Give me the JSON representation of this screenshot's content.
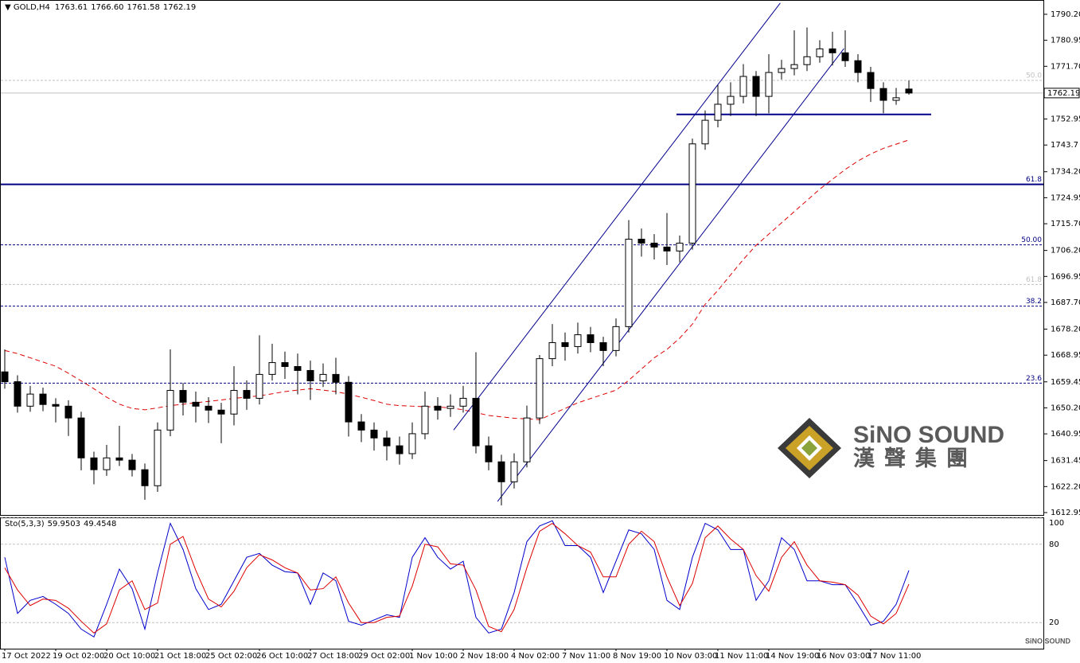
{
  "chart_data": {
    "type": "candlestick",
    "symbol": "GOLD,H4",
    "header_values": [
      "1763.61",
      "1766.60",
      "1761.58",
      "1762.19"
    ],
    "categories": [
      "17 Oct 2022",
      null,
      null,
      null,
      "19 Oct 02:00",
      null,
      null,
      null,
      "20 Oct 10:00",
      null,
      null,
      null,
      "21 Oct 18:00",
      null,
      null,
      null,
      "25 Oct 02:00",
      null,
      null,
      null,
      "26 Oct 10:00",
      null,
      null,
      null,
      "27 Oct 18:00",
      null,
      null,
      null,
      "29 Oct 02:00",
      null,
      null,
      null,
      "1 Nov 10:00",
      null,
      null,
      null,
      "2 Nov 18:00",
      null,
      null,
      null,
      "4 Nov 02:00",
      null,
      null,
      null,
      "7 Nov 11:00",
      null,
      null,
      null,
      "8 Nov 19:00",
      null,
      null,
      null,
      "10 Nov 03:00",
      null,
      null,
      null,
      "11 Nov 11:00",
      null,
      null,
      null,
      "14 Nov 19:00",
      null,
      null,
      null,
      "16 Nov 03:00",
      null,
      null,
      null,
      "17 Nov 11:00",
      null,
      null,
      null
    ],
    "open": [
      1663.0,
      1659.5,
      1650.8,
      1655.1,
      1651.4,
      1650.8,
      1646.6,
      1632.4,
      1628.2,
      1632.4,
      1631.6,
      1628.2,
      1622.5,
      1642.3,
      1656.4,
      1652.2,
      1650.8,
      1649.4,
      1648.0,
      1656.4,
      1653.6,
      1662.1,
      1666.3,
      1664.9,
      1663.5,
      1659.8,
      1662.1,
      1659.3,
      1645.2,
      1642.3,
      1639.5,
      1636.7,
      1633.9,
      1641.0,
      1650.8,
      1650.0,
      1650.8,
      1653.6,
      1636.7,
      1631.0,
      1623.9,
      1631.0,
      1646.6,
      1667.7,
      1673.4,
      1672.0,
      1676.2,
      1673.4,
      1670.6,
      1679.1,
      1710.2,
      1708.8,
      1707.4,
      1706.0,
      1708.8,
      1744.1,
      1752.5,
      1758.2,
      1761.0,
      1768.1,
      1761.0,
      1769.5,
      1770.9,
      1772.3,
      1775.1,
      1777.9,
      1776.5,
      1773.7,
      1769.5,
      1763.8,
      1759.6,
      1763.61
    ],
    "high": [
      1671.0,
      1661.8,
      1658.0,
      1657.4,
      1653.6,
      1652.9,
      1648.8,
      1634.6,
      1637.0,
      1643.8,
      1633.8,
      1630.4,
      1645.0,
      1671.0,
      1659.0,
      1656.0,
      1654.0,
      1652.0,
      1665.0,
      1660.0,
      1676.0,
      1673.0,
      1670.2,
      1669.5,
      1667.0,
      1666.0,
      1668.0,
      1661.5,
      1648.0,
      1645.0,
      1642.0,
      1640.0,
      1645.0,
      1656.0,
      1654.0,
      1655.0,
      1658.0,
      1670.0,
      1640.0,
      1633.5,
      1634.0,
      1651.0,
      1669.0,
      1680.0,
      1677.0,
      1680.5,
      1679.0,
      1675.5,
      1682.0,
      1717.0,
      1714.0,
      1712.0,
      1719.5,
      1711.5,
      1746.0,
      1756.0,
      1765.0,
      1766.0,
      1772.5,
      1770.0,
      1776.0,
      1774.0,
      1784.5,
      1785.5,
      1781.0,
      1784.0,
      1784.5,
      1776.0,
      1771.5,
      1766.0,
      1764.0,
      1766.6
    ],
    "low": [
      1657.0,
      1648.5,
      1648.8,
      1649.0,
      1645.0,
      1640.2,
      1628.0,
      1623.0,
      1626.0,
      1629.5,
      1625.8,
      1617.5,
      1620.3,
      1640.1,
      1647.5,
      1645.0,
      1644.8,
      1637.6,
      1644.0,
      1649.5,
      1651.4,
      1659.9,
      1660.5,
      1655.0,
      1653.0,
      1657.6,
      1655.0,
      1640.0,
      1638.0,
      1635.0,
      1631.5,
      1630.0,
      1632.0,
      1639.0,
      1646.0,
      1647.0,
      1648.5,
      1634.0,
      1628.0,
      1615.5,
      1621.5,
      1629.0,
      1644.5,
      1665.0,
      1667.0,
      1669.5,
      1670.0,
      1665.0,
      1668.5,
      1677.0,
      1704.0,
      1703.0,
      1701.0,
      1702.0,
      1706.5,
      1742.0,
      1750.0,
      1754.0,
      1758.5,
      1754.0,
      1755.0,
      1767.0,
      1768.5,
      1770.0,
      1773.0,
      1772.0,
      1771.5,
      1766.0,
      1759.0,
      1755.0,
      1758.0,
      1761.58
    ],
    "close": [
      1659.5,
      1650.8,
      1655.1,
      1651.4,
      1650.8,
      1646.6,
      1632.4,
      1628.2,
      1632.4,
      1631.6,
      1628.2,
      1622.5,
      1642.3,
      1656.4,
      1652.2,
      1650.8,
      1649.4,
      1648.0,
      1656.4,
      1653.6,
      1662.1,
      1666.3,
      1664.9,
      1663.5,
      1659.8,
      1662.1,
      1659.3,
      1645.2,
      1642.3,
      1639.5,
      1636.7,
      1633.9,
      1641.0,
      1650.8,
      1649.4,
      1650.8,
      1653.6,
      1636.7,
      1631.0,
      1623.9,
      1631.0,
      1646.6,
      1667.7,
      1673.4,
      1672.0,
      1676.2,
      1673.4,
      1670.6,
      1679.1,
      1710.2,
      1708.8,
      1707.4,
      1706.0,
      1708.8,
      1744.1,
      1752.5,
      1758.2,
      1761.0,
      1768.1,
      1761.0,
      1769.5,
      1770.9,
      1772.3,
      1775.1,
      1777.9,
      1776.5,
      1773.7,
      1769.5,
      1763.8,
      1759.6,
      1760.5,
      1762.19
    ],
    "up_color": "#ffffff",
    "down_color": "#000000",
    "ylim": [
      1612.1,
      1795.0
    ],
    "yticks": [
      {
        "value": 1790.2,
        "label": "1790.20"
      },
      1780.95,
      {
        "value": 1771.7,
        "label": "1771.70"
      },
      1752.95,
      1743.7,
      {
        "value": 1734.2,
        "label": "1734.20"
      },
      1724.95,
      {
        "value": 1715.7,
        "label": "1715.70"
      },
      {
        "value": 1706.2,
        "label": "1706.20"
      },
      1696.95,
      {
        "value": 1687.7,
        "label": "1687.70"
      },
      {
        "value": 1678.2,
        "label": "1678.20"
      },
      1668.95,
      1659.45,
      {
        "value": 1650.2,
        "label": "1650.20"
      },
      1640.95,
      1631.45,
      {
        "value": 1622.2,
        "label": "1622.20"
      },
      1612.95
    ],
    "ma": {
      "color": "#dd0000",
      "values": [
        1670.6,
        1669.5,
        1668.0,
        1666.5,
        1665.0,
        1662.5,
        1659.8,
        1657.0,
        1654.0,
        1651.5,
        1650.0,
        1649.5,
        1650.2,
        1651.0,
        1651.5,
        1652.0,
        1652.5,
        1653.0,
        1653.6,
        1654.0,
        1654.5,
        1655.2,
        1656.0,
        1656.5,
        1657.0,
        1656.5,
        1656.0,
        1655.0,
        1654.0,
        1652.8,
        1651.5,
        1651.0,
        1650.8,
        1650.6,
        1650.5,
        1650.2,
        1649.5,
        1648.5,
        1647.5,
        1647.0,
        1646.5,
        1646.3,
        1646.0,
        1648.0,
        1650.0,
        1652.0,
        1653.5,
        1655.0,
        1656.5,
        1660.0,
        1664.0,
        1668.0,
        1671.0,
        1675.0,
        1680.0,
        1687.0,
        1692.0,
        1697.5,
        1703.0,
        1708.0,
        1712.0,
        1716.0,
        1720.0,
        1724.0,
        1728.0,
        1731.5,
        1735.0,
        1738.0,
        1740.5,
        1742.5,
        1744.0,
        1745.5
      ]
    },
    "levels": [
      {
        "value": 1766.7,
        "label": "50.0",
        "color": "#c0c0c0",
        "style": "dotted"
      },
      {
        "value": 1729.7,
        "label": "61.8",
        "color": "#000080",
        "style": "solid"
      },
      {
        "value": 1708.2,
        "label": "50.00",
        "color": "#000080",
        "style": "dotted"
      },
      {
        "value": 1694.1,
        "label": "61.8",
        "color": "#c0c0c0",
        "style": "dotted"
      },
      {
        "value": 1686.4,
        "label": "38.2",
        "color": "#000080",
        "style": "dotted"
      },
      {
        "value": 1659.0,
        "label": "23.6",
        "color": "#000080",
        "style": "dotted"
      }
    ],
    "trendlines": [
      {
        "x": [
          35.25,
          60.9
        ],
        "y": [
          1642.3,
          1794.2
        ],
        "color": "#00008b"
      },
      {
        "x": [
          38.7,
          65.9
        ],
        "y": [
          1616.9,
          1778.0
        ],
        "color": "#00008b"
      },
      {
        "x": [
          52.75,
          72.75
        ],
        "y": [
          1754.6,
          1754.6
        ],
        "color": "#00008b"
      }
    ],
    "watermark": {
      "name": "SiNO SOUND",
      "chinese": "漢聲集團"
    },
    "indicator": {
      "type": "line",
      "name": "Sto(5,3,3)",
      "header_values": [
        "59.9503",
        "49.4548"
      ],
      "ylim": [
        0,
        100
      ],
      "yticks": [
        20,
        80,
        100
      ],
      "series": [
        {
          "color": "#0000cc",
          "values": [
            70,
            27,
            37,
            40,
            34,
            27,
            15,
            9,
            34,
            61,
            46,
            15,
            58,
            96,
            76,
            46,
            30,
            34,
            52,
            70,
            73,
            64,
            59,
            58,
            34,
            58,
            52,
            21,
            18,
            22,
            26,
            24,
            70,
            85,
            70,
            61,
            67,
            24,
            12,
            15,
            43,
            82,
            94,
            98,
            79,
            79,
            70,
            43,
            67,
            91,
            88,
            76,
            37,
            30,
            70,
            96,
            91,
            76,
            76,
            37,
            52,
            85,
            76,
            52,
            52,
            49,
            49,
            34,
            18,
            21,
            34,
            59.9503
          ]
        },
        {
          "color": "#dd0000",
          "values": [
            62,
            45,
            33,
            38,
            37,
            31,
            21,
            12,
            19,
            45,
            52,
            30,
            35,
            80,
            86,
            60,
            38,
            32,
            44,
            62,
            72,
            68,
            62,
            58,
            45,
            46,
            55,
            35,
            20,
            20,
            24,
            25,
            48,
            80,
            78,
            65,
            64,
            45,
            17,
            13,
            30,
            62,
            90,
            96,
            88,
            79,
            74,
            55,
            55,
            80,
            90,
            82,
            55,
            33,
            50,
            85,
            94,
            84,
            76,
            56,
            44,
            70,
            82,
            64,
            52,
            51,
            49,
            41,
            25,
            19,
            27,
            49.4548
          ]
        }
      ]
    }
  }
}
